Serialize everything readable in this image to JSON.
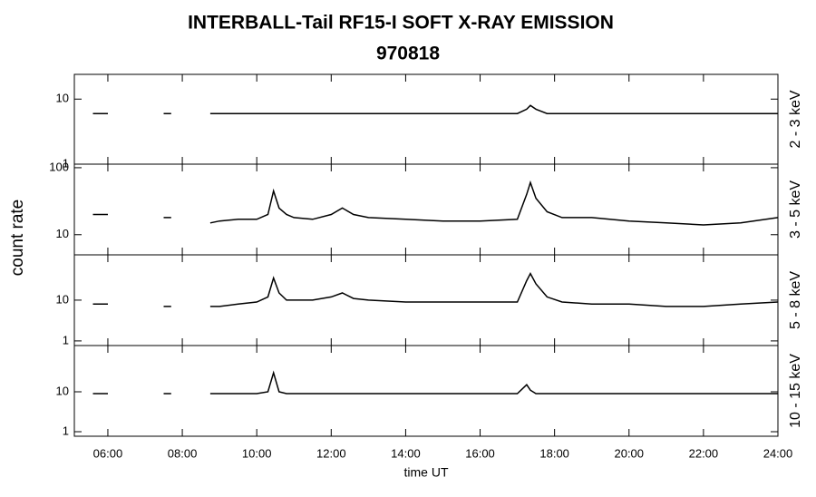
{
  "title": "INTERBALL-Tail RF15-I SOFT X-RAY EMISSION",
  "subtitle": "970818",
  "ylabel": "count rate",
  "xlabel": "time UT",
  "chart_data": [
    {
      "type": "line",
      "log_y": true,
      "x": [
        5.6,
        5.8,
        6.0,
        6.8,
        7.5,
        7.6,
        7.7,
        8.3,
        8.75,
        9.0,
        9.5,
        10.0,
        10.3,
        10.45,
        10.6,
        10.8,
        11.0,
        11.5,
        12.0,
        12.3,
        12.6,
        13.0,
        14.0,
        15.0,
        16.0,
        17.0,
        17.25,
        17.35,
        17.5,
        17.8,
        18.2,
        19.0,
        20.0,
        21.0,
        22.0,
        23.0,
        24.0
      ],
      "series": [
        {
          "name": "2 - 3 keV",
          "color": "#000000",
          "values": [
            6,
            6,
            6,
            null,
            6,
            6,
            6,
            null,
            6,
            6,
            6,
            6,
            6,
            6,
            6,
            6,
            6,
            6,
            6,
            6,
            6,
            6,
            6,
            6,
            6,
            6,
            7,
            8,
            7,
            6,
            6,
            6,
            6,
            6,
            6,
            6,
            6
          ]
        }
      ],
      "xlim": [
        5.1,
        24
      ],
      "ylim": [
        1,
        24
      ],
      "yticks": [
        1,
        10
      ]
    },
    {
      "type": "line",
      "log_y": true,
      "x": [
        5.6,
        5.8,
        6.0,
        6.8,
        7.5,
        7.6,
        7.7,
        8.3,
        8.75,
        9.0,
        9.5,
        10.0,
        10.3,
        10.45,
        10.6,
        10.8,
        11.0,
        11.5,
        12.0,
        12.3,
        12.6,
        13.0,
        14.0,
        15.0,
        16.0,
        17.0,
        17.25,
        17.35,
        17.5,
        17.8,
        18.2,
        19.0,
        20.0,
        21.0,
        22.0,
        23.0,
        24.0
      ],
      "series": [
        {
          "name": "3 - 5 keV",
          "color": "#000000",
          "values": [
            20,
            20,
            20,
            null,
            18,
            18,
            18,
            null,
            15,
            16,
            17,
            17,
            20,
            45,
            25,
            20,
            18,
            17,
            20,
            25,
            20,
            18,
            17,
            16,
            16,
            17,
            40,
            60,
            35,
            22,
            18,
            18,
            16,
            15,
            14,
            15,
            18
          ]
        }
      ],
      "xlim": [
        5.1,
        24
      ],
      "ylim": [
        5,
        113
      ],
      "yticks": [
        10,
        100
      ]
    },
    {
      "type": "line",
      "log_y": true,
      "x": [
        5.6,
        5.8,
        6.0,
        6.8,
        7.5,
        7.6,
        7.7,
        8.3,
        8.75,
        9.0,
        9.5,
        10.0,
        10.3,
        10.45,
        10.6,
        10.8,
        11.0,
        11.5,
        12.0,
        12.3,
        12.6,
        13.0,
        14.0,
        15.0,
        16.0,
        17.0,
        17.25,
        17.35,
        17.5,
        17.8,
        18.2,
        19.0,
        20.0,
        21.0,
        22.0,
        23.0,
        24.0
      ],
      "series": [
        {
          "name": "5 - 8 keV",
          "color": "#000000",
          "values": [
            8,
            8,
            8,
            null,
            7,
            7,
            7,
            null,
            7,
            7,
            8,
            9,
            12,
            35,
            15,
            10,
            10,
            10,
            12,
            15,
            11,
            10,
            9,
            9,
            9,
            9,
            30,
            45,
            25,
            12,
            9,
            8,
            8,
            7,
            7,
            8,
            9
          ]
        }
      ],
      "xlim": [
        5.1,
        24
      ],
      "ylim": [
        0.77,
        129
      ],
      "yticks": [
        1,
        10
      ]
    },
    {
      "type": "line",
      "log_y": true,
      "x": [
        5.6,
        5.8,
        6.0,
        6.8,
        7.5,
        7.6,
        7.7,
        8.3,
        8.75,
        9.0,
        9.5,
        10.0,
        10.3,
        10.45,
        10.6,
        10.8,
        11.0,
        11.5,
        12.0,
        12.3,
        12.6,
        13.0,
        14.0,
        15.0,
        16.0,
        17.0,
        17.25,
        17.35,
        17.5,
        17.8,
        18.2,
        19.0,
        20.0,
        21.0,
        22.0,
        23.0,
        24.0
      ],
      "series": [
        {
          "name": "10 - 15 keV",
          "color": "#000000",
          "values": [
            9,
            9,
            9,
            null,
            9,
            9,
            9,
            null,
            9,
            9,
            9,
            9,
            10,
            30,
            10,
            9,
            9,
            9,
            9,
            9,
            9,
            9,
            9,
            9,
            9,
            9,
            15,
            11,
            9,
            9,
            9,
            9,
            9,
            9,
            9,
            9,
            9
          ]
        }
      ],
      "xlim": [
        5.1,
        24
      ],
      "ylim": [
        0.77,
        144
      ],
      "yticks": [
        1,
        10
      ],
      "xticks": [
        {
          "value": 6,
          "label": "06:00"
        },
        {
          "value": 8,
          "label": "08:00"
        },
        {
          "value": 10,
          "label": "10:00"
        },
        {
          "value": 12,
          "label": "12:00"
        },
        {
          "value": 14,
          "label": "14:00"
        },
        {
          "value": 16,
          "label": "16:00"
        },
        {
          "value": 18,
          "label": "18:00"
        },
        {
          "value": 20,
          "label": "20:00"
        },
        {
          "value": 22,
          "label": "22:00"
        },
        {
          "value": 24,
          "label": "24:00"
        }
      ]
    }
  ]
}
